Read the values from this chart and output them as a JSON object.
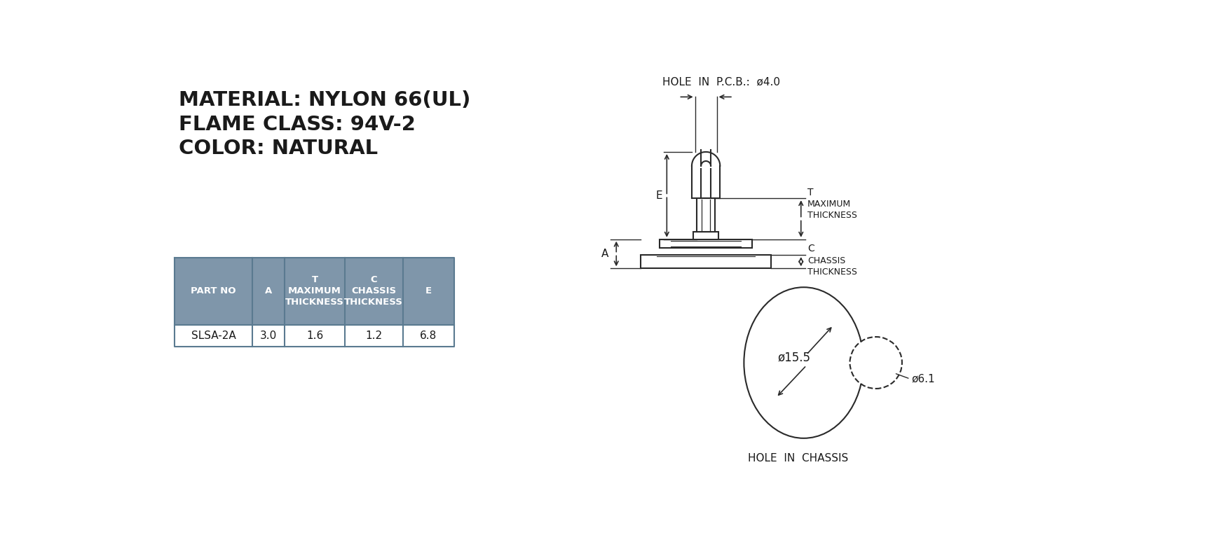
{
  "bg_color": "#ffffff",
  "text_color": "#1a1a1a",
  "draw_color": "#2a2a2a",
  "line1": "MATERIAL: NYLON 66(UL)",
  "line2": "FLAME CLASS: 94V-2",
  "line3": "COLOR: NATURAL",
  "table_header_bg": "#7f96aa",
  "table_header_text": "#ffffff",
  "table_row_bg": "#ffffff",
  "table_border": "#5a7a90",
  "table_data": [
    "SLSA-2A",
    "3.0",
    "1.6",
    "1.2",
    "6.8"
  ],
  "hole_pcb_label": "HOLE  IN  P.C.B.:  ø4.0",
  "hole_chassis_label": "HOLE  IN  CHASSIS",
  "dim_T": "T",
  "dim_max_thick": "MAXIMUM\nTHICKNESS",
  "dim_C": "C",
  "dim_chassis_thick": "CHASSIS\nTHICKNESS",
  "dim_A": "A",
  "dim_E": "E",
  "dim_15_5": "ø15.5",
  "dim_6_1": "ø6.1"
}
